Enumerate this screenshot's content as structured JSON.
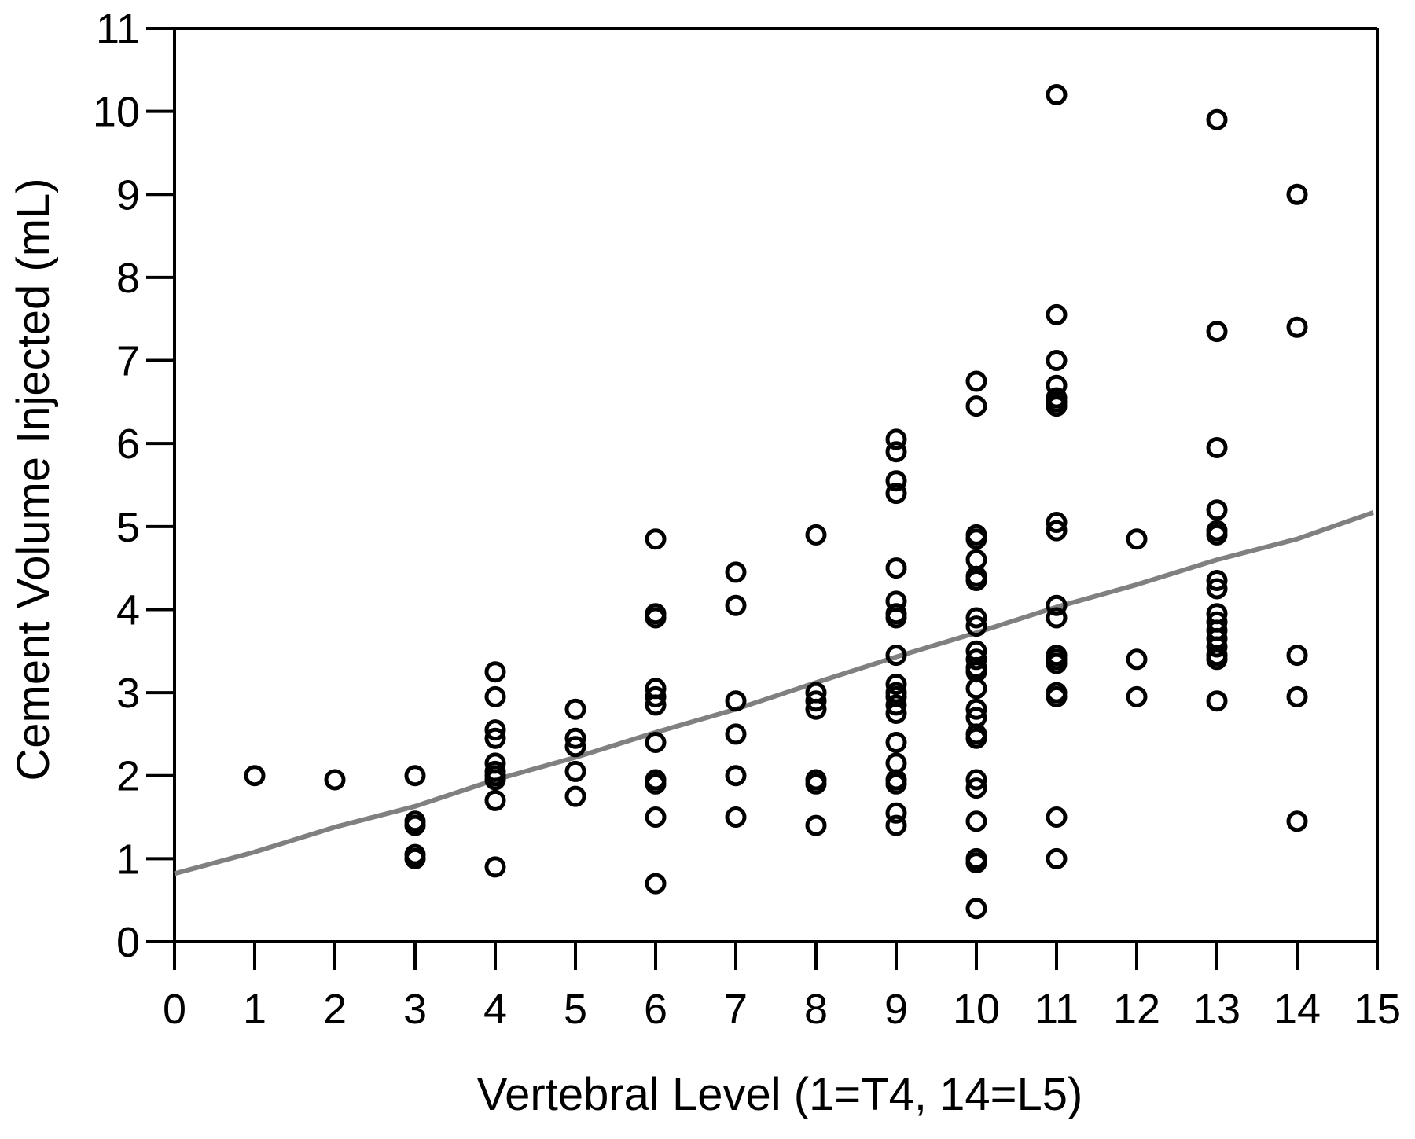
{
  "chart_data": {
    "type": "scatter",
    "xlabel": "Vertebral Level (1=T4, 14=L5)",
    "ylabel": "Cement Volume Injected (mL)",
    "xlim": [
      0,
      15
    ],
    "ylim": [
      0,
      11
    ],
    "xticks": [
      0,
      1,
      2,
      3,
      4,
      5,
      6,
      7,
      8,
      9,
      10,
      11,
      12,
      13,
      14,
      15
    ],
    "yticks": [
      0,
      1,
      2,
      3,
      4,
      5,
      6,
      7,
      8,
      9,
      10,
      11
    ],
    "grid": false,
    "legend": "none",
    "colors": {
      "points": "#000000",
      "trend": "#808080",
      "axis": "#000000"
    },
    "series": [
      {
        "marker": "open-circle",
        "points": [
          [
            1,
            2.0
          ],
          [
            2,
            1.95
          ],
          [
            3,
            2.0
          ],
          [
            3,
            1.45
          ],
          [
            3,
            1.4
          ],
          [
            3,
            1.05
          ],
          [
            3,
            1.0
          ],
          [
            4,
            3.25
          ],
          [
            4,
            2.95
          ],
          [
            4,
            2.55
          ],
          [
            4,
            2.45
          ],
          [
            4,
            2.15
          ],
          [
            4,
            2.05
          ],
          [
            4,
            2.0
          ],
          [
            4,
            1.95
          ],
          [
            4,
            1.7
          ],
          [
            4,
            0.9
          ],
          [
            5,
            2.8
          ],
          [
            5,
            2.45
          ],
          [
            5,
            2.35
          ],
          [
            5,
            2.05
          ],
          [
            5,
            1.75
          ],
          [
            6,
            4.85
          ],
          [
            6,
            3.95
          ],
          [
            6,
            3.9
          ],
          [
            6,
            3.05
          ],
          [
            6,
            2.95
          ],
          [
            6,
            2.85
          ],
          [
            6,
            2.4
          ],
          [
            6,
            1.95
          ],
          [
            6,
            1.9
          ],
          [
            6,
            1.5
          ],
          [
            6,
            0.7
          ],
          [
            7,
            4.45
          ],
          [
            7,
            4.05
          ],
          [
            7,
            2.9
          ],
          [
            7,
            2.5
          ],
          [
            7,
            2.0
          ],
          [
            7,
            1.5
          ],
          [
            8,
            4.9
          ],
          [
            8,
            3.0
          ],
          [
            8,
            2.9
          ],
          [
            8,
            2.8
          ],
          [
            8,
            1.95
          ],
          [
            8,
            1.9
          ],
          [
            8,
            1.4
          ],
          [
            9,
            6.05
          ],
          [
            9,
            5.9
          ],
          [
            9,
            5.55
          ],
          [
            9,
            5.4
          ],
          [
            9,
            4.5
          ],
          [
            9,
            4.1
          ],
          [
            9,
            3.95
          ],
          [
            9,
            3.9
          ],
          [
            9,
            3.45
          ],
          [
            9,
            3.1
          ],
          [
            9,
            3.0
          ],
          [
            9,
            2.95
          ],
          [
            9,
            2.85
          ],
          [
            9,
            2.75
          ],
          [
            9,
            2.4
          ],
          [
            9,
            2.15
          ],
          [
            9,
            1.95
          ],
          [
            9,
            1.9
          ],
          [
            9,
            1.55
          ],
          [
            9,
            1.4
          ],
          [
            10,
            6.75
          ],
          [
            10,
            6.45
          ],
          [
            10,
            4.9
          ],
          [
            10,
            4.85
          ],
          [
            10,
            4.6
          ],
          [
            10,
            4.4
          ],
          [
            10,
            4.35
          ],
          [
            10,
            3.9
          ],
          [
            10,
            3.8
          ],
          [
            10,
            3.5
          ],
          [
            10,
            3.4
          ],
          [
            10,
            3.3
          ],
          [
            10,
            3.25
          ],
          [
            10,
            3.05
          ],
          [
            10,
            2.8
          ],
          [
            10,
            2.7
          ],
          [
            10,
            2.5
          ],
          [
            10,
            2.45
          ],
          [
            10,
            1.95
          ],
          [
            10,
            1.85
          ],
          [
            10,
            1.45
          ],
          [
            10,
            1.0
          ],
          [
            10,
            0.95
          ],
          [
            10,
            0.4
          ],
          [
            11,
            10.2
          ],
          [
            11,
            7.55
          ],
          [
            11,
            7.0
          ],
          [
            11,
            6.7
          ],
          [
            11,
            6.55
          ],
          [
            11,
            6.5
          ],
          [
            11,
            6.45
          ],
          [
            11,
            5.05
          ],
          [
            11,
            4.95
          ],
          [
            11,
            4.05
          ],
          [
            11,
            3.9
          ],
          [
            11,
            3.45
          ],
          [
            11,
            3.4
          ],
          [
            11,
            3.35
          ],
          [
            11,
            3.0
          ],
          [
            11,
            2.95
          ],
          [
            11,
            1.5
          ],
          [
            11,
            1.0
          ],
          [
            12,
            4.85
          ],
          [
            12,
            3.4
          ],
          [
            12,
            2.95
          ],
          [
            13,
            9.9
          ],
          [
            13,
            7.35
          ],
          [
            13,
            5.95
          ],
          [
            13,
            5.2
          ],
          [
            13,
            4.95
          ],
          [
            13,
            4.9
          ],
          [
            13,
            4.35
          ],
          [
            13,
            4.25
          ],
          [
            13,
            3.95
          ],
          [
            13,
            3.85
          ],
          [
            13,
            3.75
          ],
          [
            13,
            3.65
          ],
          [
            13,
            3.55
          ],
          [
            13,
            3.45
          ],
          [
            13,
            3.4
          ],
          [
            13,
            2.9
          ],
          [
            14,
            9.0
          ],
          [
            14,
            7.4
          ],
          [
            14,
            3.45
          ],
          [
            14,
            2.95
          ],
          [
            14,
            1.45
          ]
        ]
      }
    ],
    "trendline": {
      "points": [
        [
          0,
          0.82
        ],
        [
          1,
          1.08
        ],
        [
          2,
          1.38
        ],
        [
          3,
          1.63
        ],
        [
          4,
          1.95
        ],
        [
          5,
          2.22
        ],
        [
          6,
          2.52
        ],
        [
          7,
          2.8
        ],
        [
          8,
          3.12
        ],
        [
          9,
          3.43
        ],
        [
          10,
          3.72
        ],
        [
          11,
          4.03
        ],
        [
          12,
          4.3
        ],
        [
          13,
          4.6
        ],
        [
          14,
          4.85
        ],
        [
          14.95,
          5.17
        ]
      ]
    }
  }
}
